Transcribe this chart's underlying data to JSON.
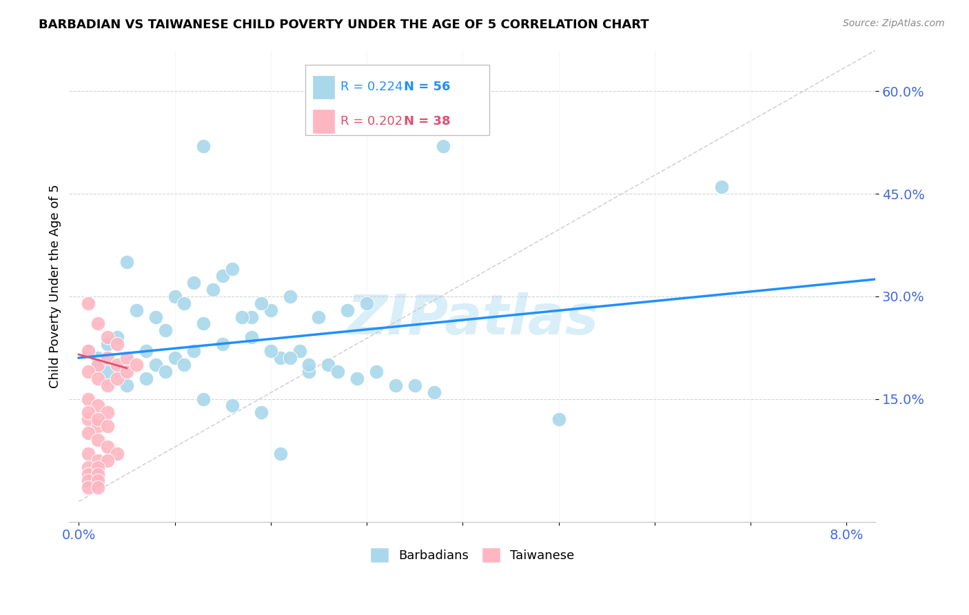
{
  "title": "BARBADIAN VS TAIWANESE CHILD POVERTY UNDER THE AGE OF 5 CORRELATION CHART",
  "source": "Source: ZipAtlas.com",
  "ylabel": "Child Poverty Under the Age of 5",
  "ytick_vals": [
    0.15,
    0.3,
    0.45,
    0.6
  ],
  "ytick_labels": [
    "15.0%",
    "30.0%",
    "45.0%",
    "60.0%"
  ],
  "xtick_vals": [
    0.0,
    0.01,
    0.02,
    0.03,
    0.04,
    0.05,
    0.06,
    0.07,
    0.08
  ],
  "xlim": [
    -0.001,
    0.083
  ],
  "ylim": [
    -0.03,
    0.66
  ],
  "blue_scatter_color": "#A8D8EA",
  "pink_scatter_color": "#FFB6C1",
  "blue_line_color": "#1E90FF",
  "pink_line_color": "#E05070",
  "ref_line_color": "#C8C8C8",
  "axis_color": "#4169E1",
  "watermark": "ZIPatlas",
  "watermark_color": "#D8EEF8",
  "legend_blue_r": "R = 0.224",
  "legend_blue_n": "N = 56",
  "legend_pink_r": "R = 0.202",
  "legend_pink_n": "N = 38",
  "barbadians_x": [
    0.013,
    0.038,
    0.001,
    0.005,
    0.008,
    0.01,
    0.012,
    0.003,
    0.006,
    0.009,
    0.011,
    0.014,
    0.015,
    0.016,
    0.018,
    0.02,
    0.022,
    0.013,
    0.017,
    0.019,
    0.025,
    0.028,
    0.03,
    0.007,
    0.004,
    0.002,
    0.021,
    0.023,
    0.024,
    0.026,
    0.027,
    0.029,
    0.031,
    0.033,
    0.035,
    0.037,
    0.008,
    0.01,
    0.012,
    0.015,
    0.018,
    0.02,
    0.022,
    0.024,
    0.067,
    0.05,
    0.002,
    0.003,
    0.005,
    0.007,
    0.009,
    0.011,
    0.013,
    0.016,
    0.019,
    0.021
  ],
  "barbadians_y": [
    0.52,
    0.52,
    0.22,
    0.35,
    0.27,
    0.3,
    0.32,
    0.23,
    0.28,
    0.25,
    0.29,
    0.31,
    0.33,
    0.34,
    0.27,
    0.28,
    0.3,
    0.26,
    0.27,
    0.29,
    0.27,
    0.28,
    0.29,
    0.22,
    0.24,
    0.21,
    0.21,
    0.22,
    0.19,
    0.2,
    0.19,
    0.18,
    0.19,
    0.17,
    0.17,
    0.16,
    0.2,
    0.21,
    0.22,
    0.23,
    0.24,
    0.22,
    0.21,
    0.2,
    0.46,
    0.12,
    0.2,
    0.19,
    0.17,
    0.18,
    0.19,
    0.2,
    0.15,
    0.14,
    0.13,
    0.07
  ],
  "taiwanese_x": [
    0.001,
    0.002,
    0.001,
    0.003,
    0.004,
    0.002,
    0.003,
    0.001,
    0.002,
    0.004,
    0.005,
    0.003,
    0.004,
    0.005,
    0.006,
    0.001,
    0.002,
    0.003,
    0.001,
    0.002,
    0.001,
    0.002,
    0.003,
    0.004,
    0.001,
    0.002,
    0.003,
    0.001,
    0.002,
    0.001,
    0.003,
    0.002,
    0.001,
    0.002,
    0.001,
    0.002,
    0.001,
    0.002
  ],
  "taiwanese_y": [
    0.29,
    0.26,
    0.22,
    0.24,
    0.23,
    0.2,
    0.21,
    0.19,
    0.18,
    0.2,
    0.21,
    0.17,
    0.18,
    0.19,
    0.2,
    0.15,
    0.14,
    0.13,
    0.12,
    0.11,
    0.1,
    0.09,
    0.08,
    0.07,
    0.13,
    0.12,
    0.11,
    0.07,
    0.06,
    0.05,
    0.06,
    0.05,
    0.04,
    0.04,
    0.03,
    0.03,
    0.02,
    0.02
  ],
  "blue_trend_x": [
    0.0,
    0.083
  ],
  "blue_trend_y": [
    0.21,
    0.325
  ],
  "pink_trend_x": [
    0.0,
    0.005
  ],
  "pink_trend_y": [
    0.215,
    0.195
  ],
  "ref_line_x": [
    0.0,
    0.083
  ],
  "ref_line_y": [
    0.0,
    0.66
  ]
}
